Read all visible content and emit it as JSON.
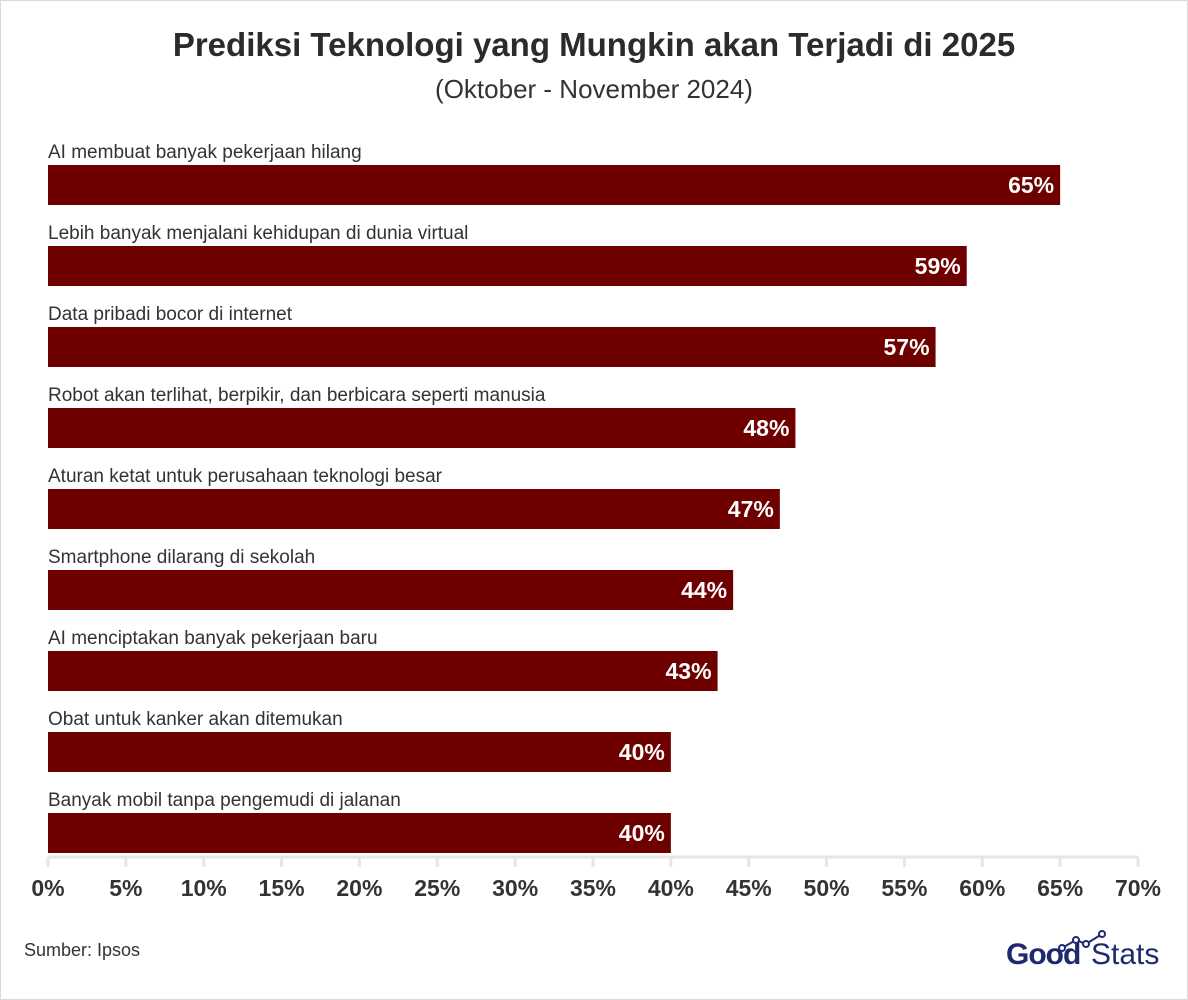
{
  "header": {
    "title": "Prediksi Teknologi yang Mungkin akan Terjadi di 2025",
    "subtitle": "(Oktober - November 2024)"
  },
  "footer": {
    "source": "Sumber: Ipsos",
    "logo_part1": "Good",
    "logo_part2": "Stats"
  },
  "colors": {
    "bar": "#6e0000",
    "axis": "#e6e6e6",
    "label_text": "#333333",
    "value_text": "#ffffff",
    "logo": "#1f2a6e"
  },
  "chart_data": {
    "type": "bar",
    "orientation": "horizontal",
    "title": "Prediksi Teknologi yang Mungkin akan Terjadi di 2025",
    "subtitle": "(Oktober - November 2024)",
    "categories": [
      "AI membuat banyak pekerjaan hilang",
      "Lebih banyak menjalani kehidupan di dunia virtual",
      "Data pribadi bocor di internet",
      "Robot akan terlihat, berpikir, dan berbicara seperti manusia",
      "Aturan ketat untuk perusahaan teknologi besar",
      "Smartphone dilarang di sekolah",
      "AI menciptakan banyak pekerjaan baru",
      "Obat untuk kanker akan ditemukan",
      "Banyak mobil tanpa pengemudi di jalanan"
    ],
    "values": [
      65,
      59,
      57,
      48,
      47,
      44,
      43,
      40,
      40
    ],
    "value_labels": [
      "65%",
      "59%",
      "57%",
      "48%",
      "47%",
      "44%",
      "43%",
      "40%",
      "40%"
    ],
    "xlim": [
      0,
      70
    ],
    "xticks": [
      0,
      5,
      10,
      15,
      20,
      25,
      30,
      35,
      40,
      45,
      50,
      55,
      60,
      65,
      70
    ],
    "xtick_labels": [
      "0%",
      "5%",
      "10%",
      "15%",
      "20%",
      "25%",
      "30%",
      "35%",
      "40%",
      "45%",
      "50%",
      "55%",
      "60%",
      "65%",
      "70%"
    ],
    "grid": false,
    "legend": "none"
  }
}
